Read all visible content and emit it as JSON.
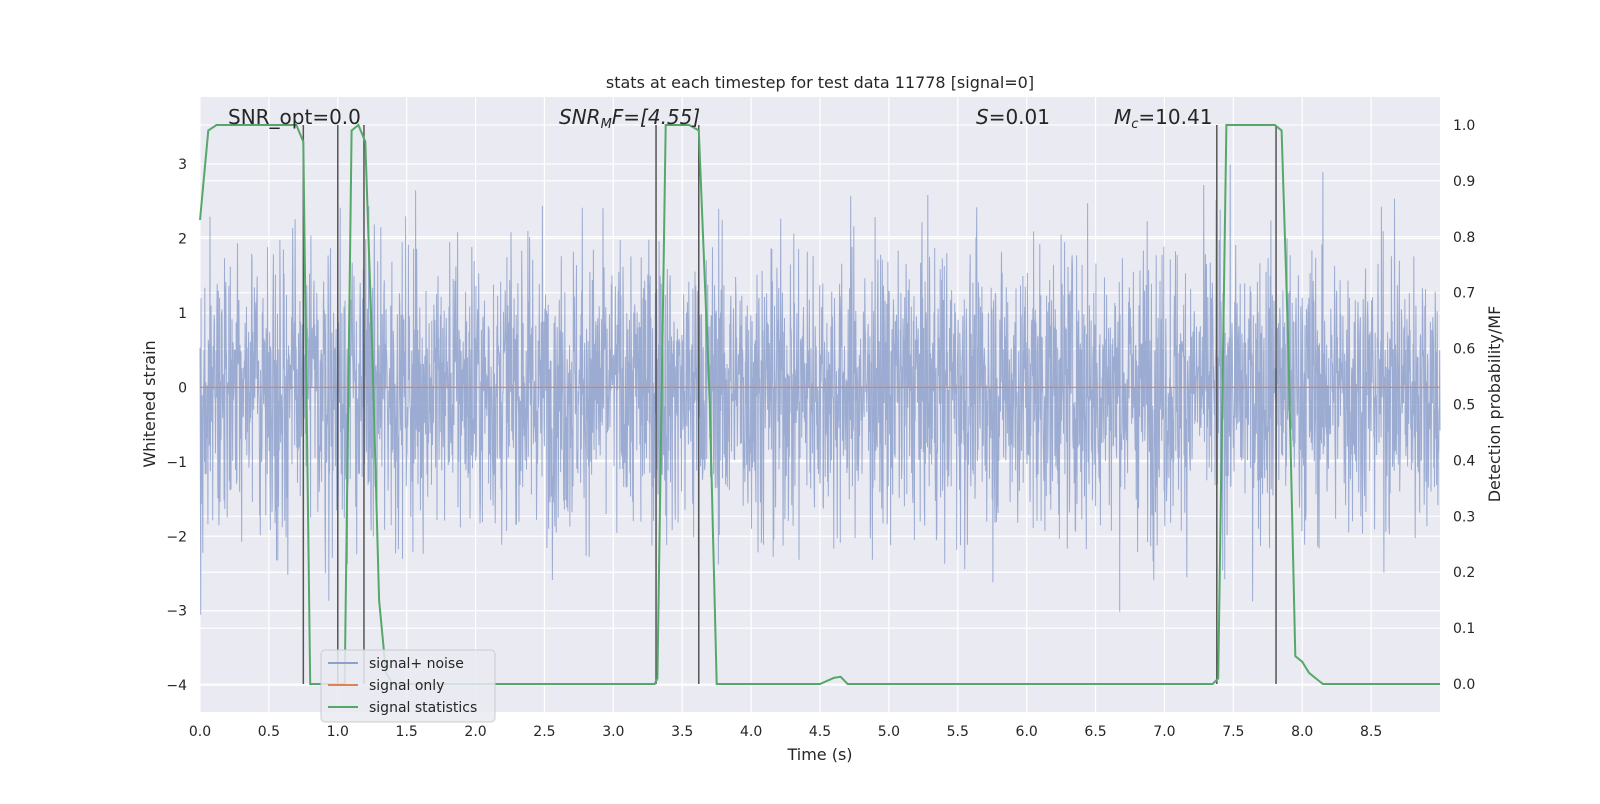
{
  "chart_data": {
    "type": "line",
    "title": "stats at each timestep for test data 11778 [signal=0]",
    "xlabel": "Time (s)",
    "ylabel": "Whitened strain",
    "ylabel_right": "Detection probability/MF",
    "xlim": [
      0.0,
      9.0
    ],
    "ylim": [
      -4.36,
      3.9
    ],
    "ylim_right": [
      -0.05,
      1.05
    ],
    "x_ticks": [
      "0.0",
      "0.5",
      "1.0",
      "1.5",
      "2.0",
      "2.5",
      "3.0",
      "3.5",
      "4.0",
      "4.5",
      "5.0",
      "5.5",
      "6.0",
      "6.5",
      "7.0",
      "7.5",
      "8.0",
      "8.5"
    ],
    "y_ticks": [
      "3",
      "2",
      "1",
      "0",
      "−1",
      "−2",
      "−3",
      "−4"
    ],
    "y_ticks_right": [
      "1.0",
      "0.9",
      "0.8",
      "0.7",
      "0.6",
      "0.5",
      "0.4",
      "0.3",
      "0.2",
      "0.1",
      "0.0"
    ],
    "grid": true,
    "legend_position": "lower-left",
    "annotations": {
      "snr_opt": "SNR_opt=0.0",
      "snr_mf_symbol": "SNR",
      "snr_mf_sub": "M",
      "snr_mf_rest": "F=[4.55]",
      "s_symbol": "S",
      "s_value": "=0.01",
      "mc_symbol": "M",
      "mc_sub": "c",
      "mc_value": "=10.41"
    },
    "series": [
      {
        "name": "signal+ noise",
        "color": "#8da0cb",
        "description_values": "whitened strain noise, roughly between -3.6 and 3.3",
        "sample_rate_hz": 400,
        "y_range_typical": [
          -2.0,
          2.0
        ]
      },
      {
        "name": "signal only",
        "color": "#dd8452",
        "x": [
          0.0,
          9.0
        ],
        "y": [
          0.0,
          0.0
        ]
      },
      {
        "name": "signal statistics",
        "color": "#55a868",
        "axis": "right",
        "x": [
          0.0,
          0.06,
          0.12,
          0.5,
          0.7,
          0.75,
          0.8,
          1.0,
          1.05,
          1.1,
          1.15,
          1.2,
          1.25,
          1.3,
          1.35,
          1.4,
          1.45,
          2.5,
          3.3,
          3.32,
          3.38,
          3.42,
          3.5,
          3.55,
          3.62,
          3.7,
          3.75,
          4.5,
          4.6,
          4.65,
          4.7,
          4.8,
          7.35,
          7.39,
          7.45,
          7.6,
          7.8,
          7.85,
          7.9,
          7.95,
          8.0,
          8.05,
          8.1,
          8.15,
          9.0
        ],
        "y": [
          0.83,
          0.99,
          1.0,
          1.0,
          1.0,
          0.97,
          0.0,
          0.0,
          0.0,
          0.99,
          1.0,
          0.97,
          0.6,
          0.15,
          0.02,
          0.0,
          0.0,
          0.0,
          0.0,
          0.01,
          1.0,
          1.0,
          1.0,
          1.0,
          0.99,
          0.5,
          0.0,
          0.0,
          0.011,
          0.013,
          0.0,
          0.0,
          0.0,
          0.01,
          1.0,
          1.0,
          1.0,
          0.99,
          0.6,
          0.05,
          0.04,
          0.02,
          0.01,
          0.0,
          0.0
        ]
      }
    ],
    "vertical_lines_x": [
      0.75,
      1.0,
      1.19,
      3.31,
      3.62,
      7.38,
      7.81
    ],
    "vertical_line_color": "#555555"
  }
}
